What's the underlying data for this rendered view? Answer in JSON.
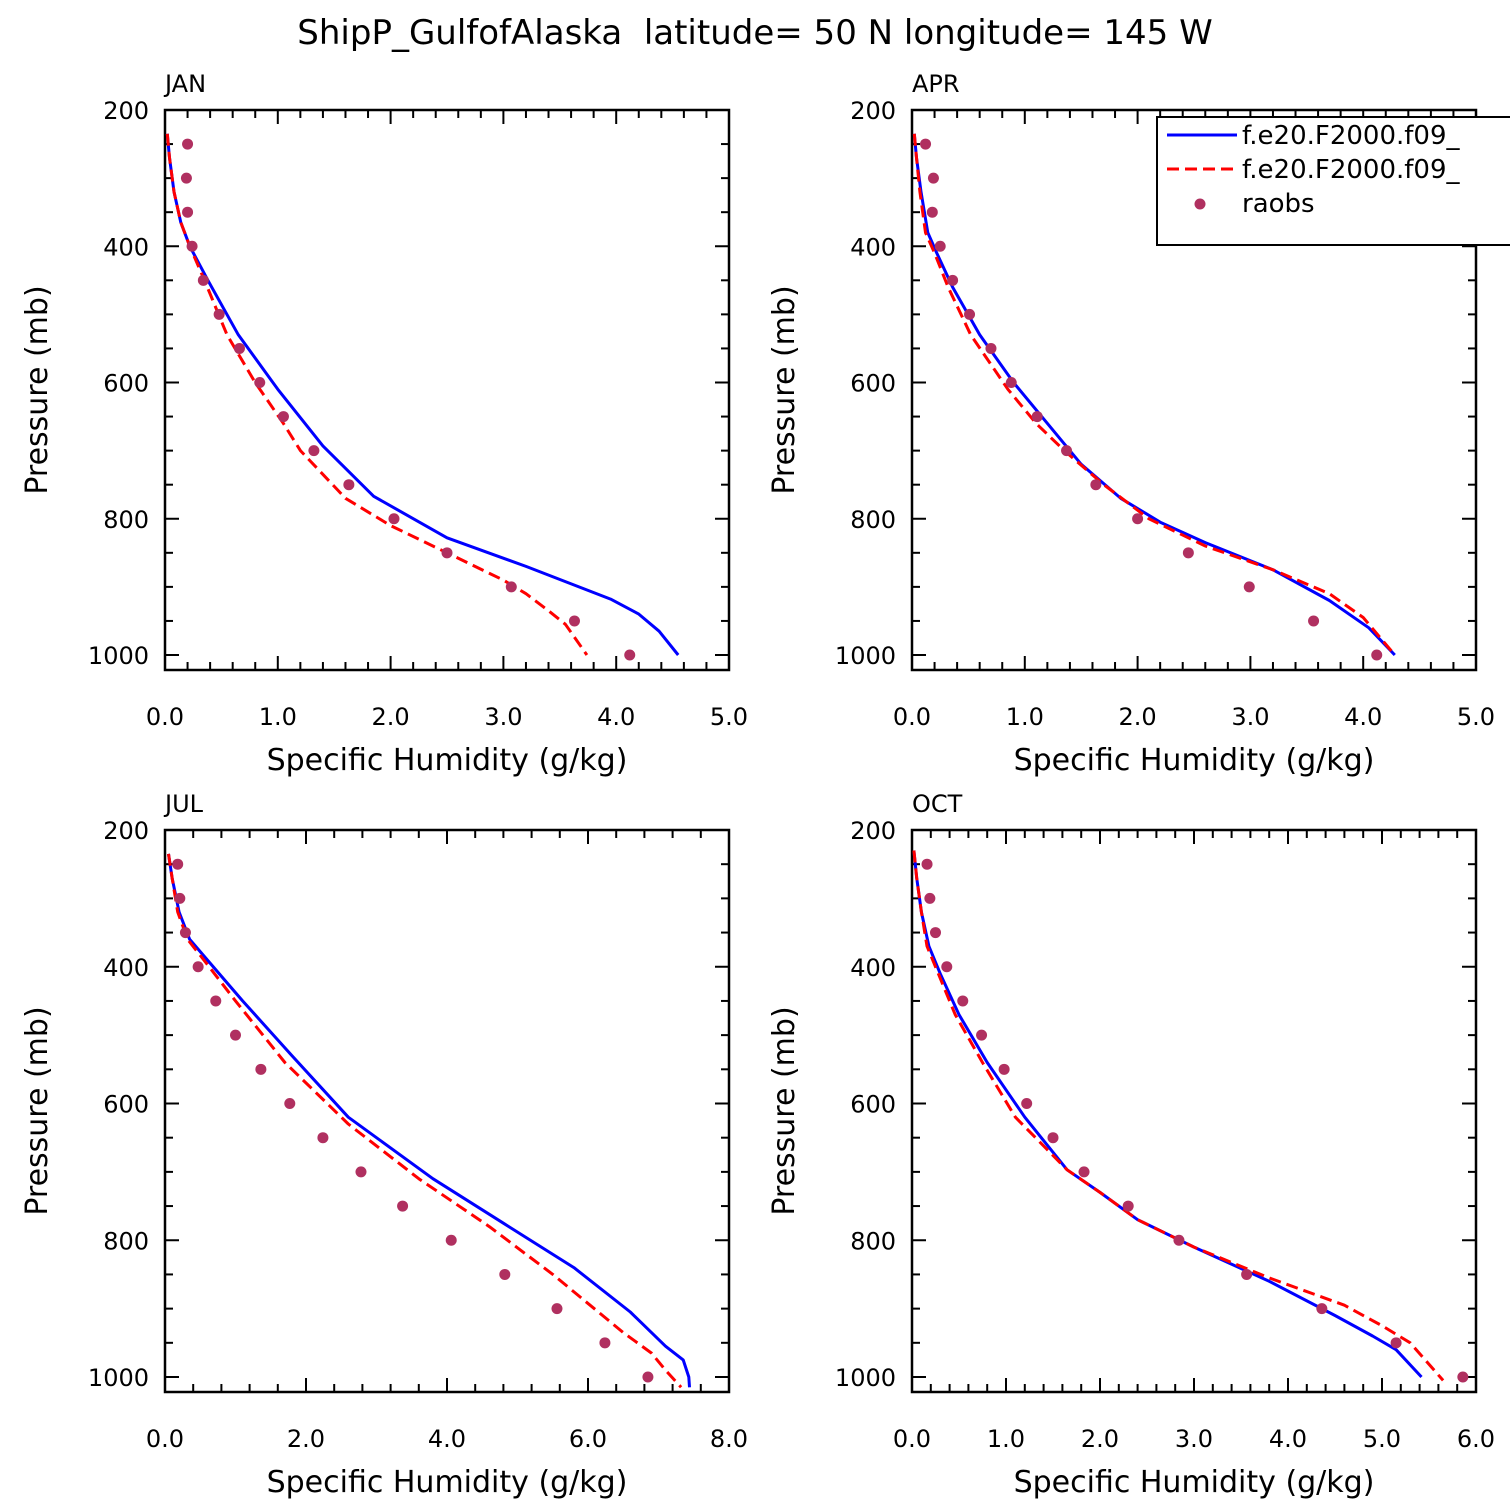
{
  "figure": {
    "title": "ShipP_GulfofAlaska  latitude= 50 N longitude= 145 W"
  },
  "legend": {
    "entries": [
      {
        "label": "f.e20.F2000.f09_",
        "style": "solid",
        "color": "#0000ff"
      },
      {
        "label": "f.e20.F2000.f09_",
        "style": "dashed",
        "color": "#ff0000"
      },
      {
        "label": "raobs",
        "style": "dots",
        "color": "#b03060"
      }
    ]
  },
  "chart_data": [
    {
      "type": "line",
      "panel": "JAN",
      "xlabel": "Specific Humidity (g/kg)",
      "ylabel": "Pressure (mb)",
      "xlim": [
        0,
        5
      ],
      "ylim": [
        1025,
        200
      ],
      "xticks": [
        0,
        1,
        2,
        3,
        4,
        5
      ],
      "xtick_labels": [
        "0.0",
        "1.0",
        "2.0",
        "3.0",
        "4.0",
        "5.0"
      ],
      "yticks": [
        200,
        400,
        600,
        800,
        1000
      ],
      "yscale": "linear, inverted",
      "series": [
        {
          "color": "#0000ff",
          "style": "solid",
          "x": [
            0.02,
            0.04,
            0.08,
            0.14,
            0.22,
            0.38,
            0.65,
            1.0,
            1.4,
            1.85,
            2.5,
            3.2,
            3.95,
            4.2,
            4.38,
            4.55
          ],
          "y": [
            235,
            270,
            320,
            365,
            400,
            450,
            530,
            610,
            693,
            767,
            828,
            870,
            918,
            940,
            965,
            1000
          ]
        },
        {
          "color": "#ff0000",
          "style": "dashed",
          "x": [
            0.02,
            0.04,
            0.08,
            0.14,
            0.22,
            0.35,
            0.55,
            0.8,
            1.05,
            1.2,
            1.6,
            2.0,
            2.5,
            3.0,
            3.2,
            3.4,
            3.55,
            3.74
          ],
          "y": [
            235,
            270,
            320,
            365,
            400,
            450,
            530,
            600,
            660,
            700,
            770,
            810,
            850,
            890,
            910,
            935,
            955,
            1000
          ]
        },
        {
          "color": "#b03060",
          "style": "dots",
          "x": [
            0.2,
            0.19,
            0.2,
            0.24,
            0.34,
            0.48,
            0.66,
            0.84,
            1.05,
            1.32,
            1.63,
            2.03,
            2.5,
            3.07,
            3.63,
            4.12
          ],
          "y": [
            250,
            300,
            350,
            400,
            450,
            500,
            550,
            600,
            650,
            700,
            750,
            800,
            850,
            900,
            950,
            1000
          ]
        }
      ]
    },
    {
      "type": "line",
      "panel": "APR",
      "xlabel": "Specific Humidity (g/kg)",
      "ylabel": "Pressure (mb)",
      "xlim": [
        0,
        5
      ],
      "ylim": [
        1025,
        200
      ],
      "xticks": [
        0,
        1,
        2,
        3,
        4,
        5
      ],
      "xtick_labels": [
        "0.0",
        "1.0",
        "2.0",
        "3.0",
        "4.0",
        "5.0"
      ],
      "yticks": [
        200,
        400,
        600,
        800,
        1000
      ],
      "yscale": "linear, inverted",
      "series": [
        {
          "color": "#0000ff",
          "style": "solid",
          "x": [
            0.02,
            0.04,
            0.08,
            0.14,
            0.22,
            0.36,
            0.6,
            0.9,
            1.2,
            1.5,
            1.85,
            2.2,
            2.6,
            3.2,
            3.7,
            4.05,
            4.28
          ],
          "y": [
            235,
            270,
            320,
            380,
            410,
            460,
            530,
            600,
            660,
            720,
            770,
            805,
            835,
            875,
            920,
            960,
            1000
          ]
        },
        {
          "color": "#ff0000",
          "style": "dashed",
          "x": [
            0.02,
            0.04,
            0.07,
            0.12,
            0.2,
            0.32,
            0.52,
            0.85,
            1.1,
            1.35,
            1.7,
            2.1,
            2.6,
            3.2,
            3.7,
            4.0,
            4.28
          ],
          "y": [
            235,
            270,
            320,
            380,
            410,
            460,
            530,
            610,
            660,
            700,
            750,
            800,
            840,
            875,
            910,
            945,
            1000
          ]
        },
        {
          "color": "#b03060",
          "style": "dots",
          "x": [
            0.12,
            0.19,
            0.18,
            0.25,
            0.36,
            0.51,
            0.7,
            0.88,
            1.11,
            1.37,
            1.63,
            2.0,
            2.45,
            2.99,
            3.56,
            4.12
          ],
          "y": [
            250,
            300,
            350,
            400,
            450,
            500,
            550,
            600,
            650,
            700,
            750,
            800,
            850,
            900,
            950,
            1000
          ]
        }
      ]
    },
    {
      "type": "line",
      "panel": "JUL",
      "xlabel": "Specific Humidity (g/kg)",
      "ylabel": "Pressure (mb)",
      "xlim": [
        0,
        8
      ],
      "ylim": [
        1025,
        200
      ],
      "xticks": [
        0,
        2,
        4,
        6,
        8
      ],
      "xtick_labels": [
        "0.0",
        "2.0",
        "4.0",
        "6.0",
        "8.0"
      ],
      "yticks": [
        200,
        400,
        600,
        800,
        1000
      ],
      "yscale": "linear, inverted",
      "series": [
        {
          "color": "#0000ff",
          "style": "solid",
          "x": [
            0.05,
            0.1,
            0.2,
            0.35,
            0.6,
            1.1,
            1.8,
            2.6,
            3.8,
            4.8,
            5.8,
            6.6,
            7.1,
            7.35,
            7.43,
            7.44
          ],
          "y": [
            235,
            270,
            320,
            360,
            390,
            450,
            530,
            620,
            710,
            775,
            840,
            905,
            955,
            975,
            1000,
            1015
          ]
        },
        {
          "color": "#ff0000",
          "style": "dashed",
          "x": [
            0.05,
            0.1,
            0.18,
            0.32,
            0.55,
            1.0,
            1.7,
            2.6,
            3.6,
            4.6,
            5.5,
            6.5,
            6.9,
            7.1,
            7.32
          ],
          "y": [
            235,
            270,
            320,
            360,
            390,
            450,
            540,
            630,
            710,
            780,
            850,
            935,
            965,
            990,
            1015
          ]
        },
        {
          "color": "#b03060",
          "style": "dots",
          "x": [
            0.18,
            0.21,
            0.29,
            0.47,
            0.72,
            1.0,
            1.36,
            1.77,
            2.24,
            2.78,
            3.37,
            4.06,
            4.82,
            5.56,
            6.24,
            6.85
          ],
          "y": [
            250,
            300,
            350,
            400,
            450,
            500,
            550,
            600,
            650,
            700,
            750,
            800,
            850,
            900,
            950,
            1000
          ]
        }
      ]
    },
    {
      "type": "line",
      "panel": "OCT",
      "xlabel": "Specific Humidity (g/kg)",
      "ylabel": "Pressure (mb)",
      "xlim": [
        0,
        6
      ],
      "ylim": [
        1025,
        200
      ],
      "xticks": [
        0,
        1,
        2,
        3,
        4,
        5,
        6
      ],
      "xtick_labels": [
        "0.0",
        "1.0",
        "2.0",
        "3.0",
        "4.0",
        "5.0",
        "6.0"
      ],
      "yticks": [
        200,
        400,
        600,
        800,
        1000
      ],
      "yscale": "linear, inverted",
      "series": [
        {
          "color": "#0000ff",
          "style": "solid",
          "x": [
            0.02,
            0.05,
            0.1,
            0.18,
            0.3,
            0.5,
            0.8,
            1.2,
            1.65,
            2.0,
            2.4,
            3.0,
            3.8,
            4.5,
            4.9,
            5.15,
            5.42
          ],
          "y": [
            230,
            270,
            320,
            370,
            410,
            470,
            540,
            620,
            697,
            730,
            770,
            810,
            860,
            910,
            940,
            960,
            1000
          ]
        },
        {
          "color": "#ff0000",
          "style": "dashed",
          "x": [
            0.02,
            0.05,
            0.1,
            0.16,
            0.28,
            0.46,
            0.75,
            1.1,
            1.65,
            2.0,
            2.4,
            3.0,
            3.8,
            4.6,
            5.0,
            5.3,
            5.65
          ],
          "y": [
            230,
            270,
            320,
            370,
            410,
            470,
            540,
            620,
            697,
            730,
            770,
            810,
            855,
            895,
            925,
            950,
            1005
          ]
        },
        {
          "color": "#b03060",
          "style": "dots",
          "x": [
            0.16,
            0.19,
            0.25,
            0.37,
            0.54,
            0.74,
            0.98,
            1.22,
            1.5,
            1.83,
            2.3,
            2.84,
            3.56,
            4.36,
            5.15,
            5.86
          ],
          "y": [
            250,
            300,
            350,
            400,
            450,
            500,
            550,
            600,
            650,
            700,
            750,
            800,
            850,
            900,
            950,
            1000
          ]
        }
      ]
    }
  ]
}
